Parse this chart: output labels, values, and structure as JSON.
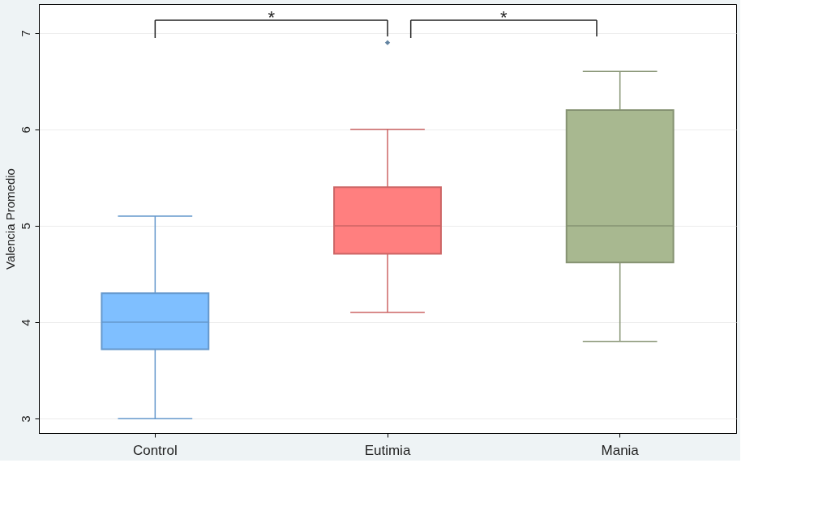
{
  "chart_data": {
    "type": "box",
    "ylabel": "Valencia Promedio",
    "categories": [
      "Control",
      "Eutimia",
      "Mania"
    ],
    "colors": [
      "#7fbfff",
      "#ff7f7f",
      "#a8b890"
    ],
    "boxes": [
      {
        "low": 3.0,
        "q1": 3.72,
        "median": 4.0,
        "q3": 4.3,
        "high": 5.1
      },
      {
        "low": 4.1,
        "q1": 4.71,
        "median": 5.0,
        "q3": 5.4,
        "high": 6.0,
        "outliers": [
          6.9
        ]
      },
      {
        "low": 3.8,
        "q1": 4.62,
        "median": 5.0,
        "q3": 6.2,
        "high": 6.6
      }
    ],
    "ylim": [
      2.85,
      7.3
    ],
    "yticks": [
      3,
      4,
      5,
      6,
      7
    ],
    "grid": "y",
    "annotations": [
      "*",
      "*"
    ]
  }
}
